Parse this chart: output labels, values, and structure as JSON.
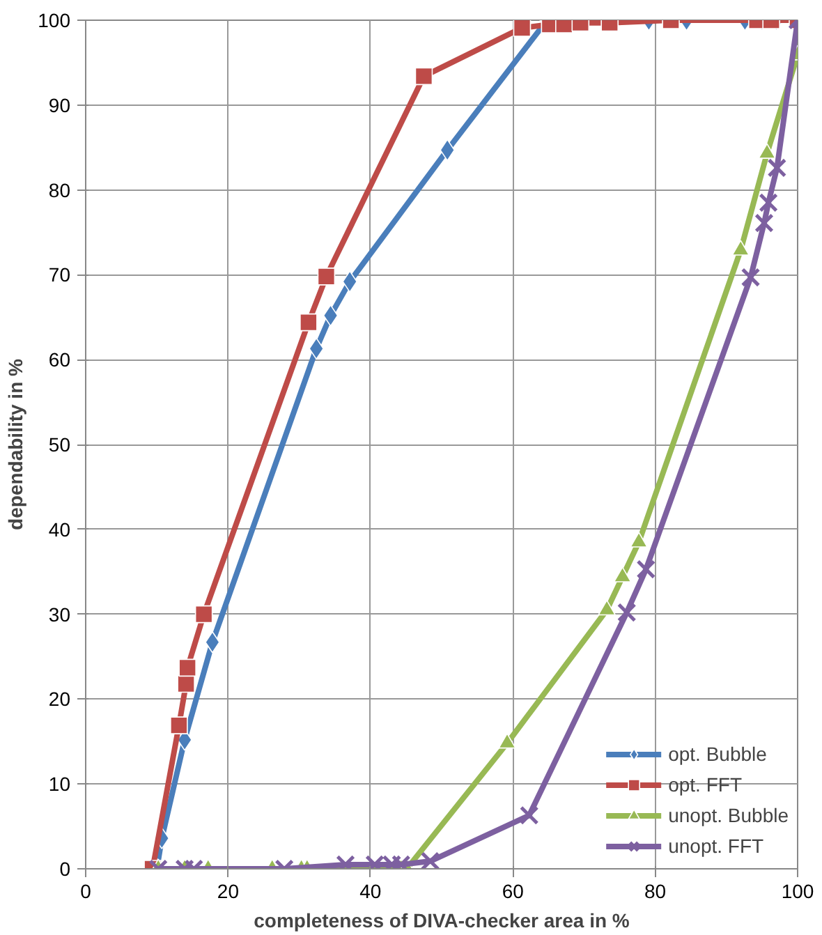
{
  "chart_data": {
    "type": "line",
    "xlabel": "completeness of DIVA-checker area in %",
    "ylabel": "dependability in %",
    "xlim": [
      0,
      100
    ],
    "ylim": [
      0,
      100
    ],
    "xticks": [
      0,
      20,
      40,
      60,
      80,
      100
    ],
    "yticks": [
      0,
      10,
      20,
      30,
      40,
      50,
      60,
      70,
      80,
      90,
      100
    ],
    "grid": true,
    "legend": "bottom right",
    "line_style": "solid",
    "series": [
      {
        "name": "opt. Bubble",
        "color": "#4a7ebb",
        "marker": "diamond",
        "x": [
          10,
          10.7,
          13.9,
          17.8,
          32.4,
          34.4,
          37.1,
          50.8,
          64.8,
          66.8,
          79.1,
          84.4,
          92.6,
          95,
          97,
          100
        ],
        "values": [
          0,
          3.6,
          15.2,
          26.7,
          61.3,
          65.2,
          69.2,
          84.7,
          100,
          100,
          100,
          100,
          100,
          100,
          100,
          100
        ]
      },
      {
        "name": "opt. FFT",
        "color": "#be4b48",
        "marker": "square",
        "x": [
          9.4,
          13.1,
          14.1,
          14.3,
          16.6,
          31.3,
          33.8,
          47.5,
          61.3,
          65.2,
          67.2,
          69.5,
          73.6,
          82.2,
          94.3,
          96.3,
          100
        ],
        "values": [
          0,
          16.9,
          21.8,
          23.7,
          30.0,
          64.4,
          69.8,
          93.4,
          99.1,
          99.5,
          99.5,
          99.7,
          99.7,
          100,
          100,
          100,
          100
        ]
      },
      {
        "name": "unopt. Bubble",
        "color": "#98b954",
        "marker": "triangle",
        "x": [
          10.2,
          13.9,
          17.2,
          26.2,
          30.3,
          31.1,
          44.3,
          45.1,
          59.2,
          73.2,
          75.4,
          77.7,
          92.0,
          95.7,
          100
        ],
        "values": [
          0,
          0,
          0,
          0,
          0,
          0,
          0,
          0,
          14.8,
          30.5,
          34.4,
          38.5,
          72.9,
          84.3,
          95.9
        ]
      },
      {
        "name": "unopt. FFT",
        "color": "#7d60a0",
        "marker": "cross",
        "x": [
          10.2,
          13.9,
          15.2,
          27.9,
          36.5,
          40.6,
          43.0,
          44.3,
          48.4,
          62.3,
          76.0,
          78.7,
          93.4,
          95.3,
          95.9,
          97.1,
          100
        ],
        "values": [
          0,
          0,
          0,
          0,
          0.5,
          0.5,
          0.5,
          0.5,
          0.9,
          6.3,
          30.2,
          35.3,
          69.7,
          76.1,
          78.5,
          82.6,
          100
        ]
      }
    ]
  }
}
